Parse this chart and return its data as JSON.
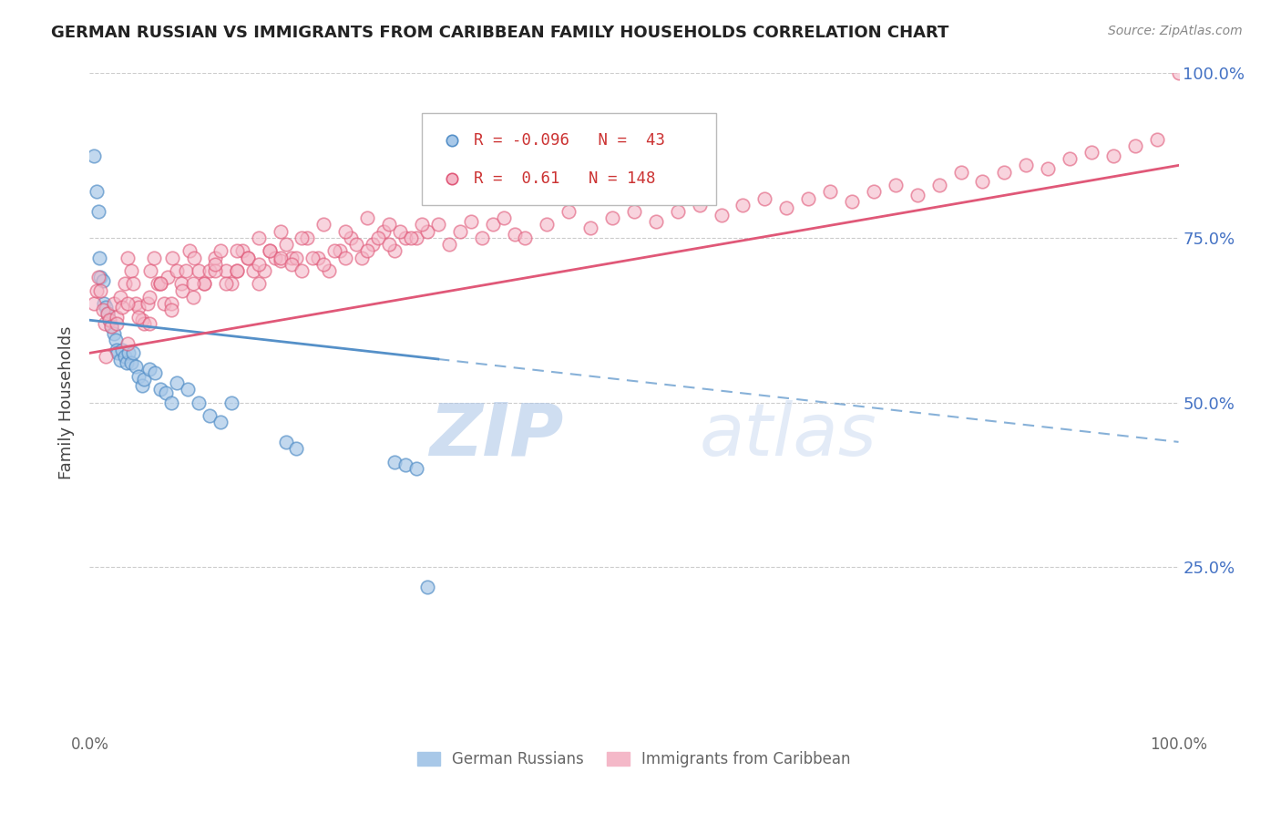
{
  "title": "GERMAN RUSSIAN VS IMMIGRANTS FROM CARIBBEAN FAMILY HOUSEHOLDS CORRELATION CHART",
  "source": "Source: ZipAtlas.com",
  "ylabel": "Family Households",
  "right_yticks": [
    "100.0%",
    "75.0%",
    "50.0%",
    "25.0%"
  ],
  "right_ytick_vals": [
    1.0,
    0.75,
    0.5,
    0.25
  ],
  "legend_blue_label": "German Russians",
  "legend_pink_label": "Immigrants from Caribbean",
  "R_blue": -0.096,
  "N_blue": 43,
  "R_pink": 0.61,
  "N_pink": 148,
  "blue_color": "#a8c8e8",
  "pink_color": "#f4b8c8",
  "blue_line_color": "#5590c8",
  "pink_line_color": "#e05878",
  "watermark_zip": "ZIP",
  "watermark_atlas": "atlas",
  "xlim": [
    0.0,
    1.0
  ],
  "ylim": [
    0.0,
    1.0
  ],
  "blue_scatter_x": [
    0.004,
    0.006,
    0.008,
    0.009,
    0.01,
    0.012,
    0.013,
    0.015,
    0.016,
    0.018,
    0.02,
    0.022,
    0.024,
    0.025,
    0.026,
    0.028,
    0.03,
    0.032,
    0.034,
    0.036,
    0.038,
    0.04,
    0.042,
    0.045,
    0.048,
    0.05,
    0.055,
    0.06,
    0.065,
    0.07,
    0.075,
    0.08,
    0.09,
    0.1,
    0.11,
    0.12,
    0.13,
    0.18,
    0.19,
    0.28,
    0.29,
    0.3,
    0.31
  ],
  "blue_scatter_y": [
    0.875,
    0.82,
    0.79,
    0.72,
    0.69,
    0.685,
    0.65,
    0.645,
    0.635,
    0.625,
    0.615,
    0.605,
    0.595,
    0.58,
    0.575,
    0.565,
    0.58,
    0.57,
    0.56,
    0.575,
    0.56,
    0.575,
    0.555,
    0.54,
    0.525,
    0.535,
    0.55,
    0.545,
    0.52,
    0.515,
    0.5,
    0.53,
    0.52,
    0.5,
    0.48,
    0.47,
    0.5,
    0.44,
    0.43,
    0.41,
    0.405,
    0.4,
    0.22
  ],
  "pink_scatter_x": [
    0.004,
    0.006,
    0.008,
    0.01,
    0.012,
    0.014,
    0.016,
    0.018,
    0.02,
    0.022,
    0.025,
    0.028,
    0.03,
    0.032,
    0.035,
    0.038,
    0.04,
    0.042,
    0.045,
    0.048,
    0.05,
    0.053,
    0.056,
    0.059,
    0.062,
    0.065,
    0.068,
    0.072,
    0.076,
    0.08,
    0.084,
    0.088,
    0.092,
    0.096,
    0.1,
    0.105,
    0.11,
    0.115,
    0.12,
    0.125,
    0.13,
    0.135,
    0.14,
    0.145,
    0.15,
    0.155,
    0.16,
    0.165,
    0.17,
    0.175,
    0.18,
    0.185,
    0.19,
    0.2,
    0.21,
    0.22,
    0.23,
    0.24,
    0.25,
    0.26,
    0.27,
    0.28,
    0.29,
    0.3,
    0.31,
    0.32,
    0.33,
    0.34,
    0.35,
    0.36,
    0.37,
    0.38,
    0.39,
    0.4,
    0.42,
    0.44,
    0.46,
    0.48,
    0.5,
    0.52,
    0.54,
    0.56,
    0.58,
    0.6,
    0.62,
    0.64,
    0.66,
    0.68,
    0.7,
    0.72,
    0.74,
    0.76,
    0.78,
    0.8,
    0.82,
    0.84,
    0.86,
    0.88,
    0.9,
    0.92,
    0.94,
    0.96,
    0.98,
    1.0,
    0.015,
    0.025,
    0.035,
    0.045,
    0.055,
    0.065,
    0.075,
    0.085,
    0.095,
    0.105,
    0.115,
    0.125,
    0.135,
    0.145,
    0.155,
    0.165,
    0.175,
    0.185,
    0.195,
    0.205,
    0.215,
    0.225,
    0.235,
    0.245,
    0.255,
    0.265,
    0.275,
    0.285,
    0.295,
    0.305,
    0.035,
    0.055,
    0.075,
    0.095,
    0.115,
    0.135,
    0.155,
    0.175,
    0.195,
    0.215,
    0.235,
    0.255,
    0.275
  ],
  "pink_scatter_y": [
    0.65,
    0.67,
    0.69,
    0.67,
    0.64,
    0.62,
    0.635,
    0.625,
    0.615,
    0.65,
    0.63,
    0.66,
    0.645,
    0.68,
    0.72,
    0.7,
    0.68,
    0.65,
    0.645,
    0.625,
    0.62,
    0.65,
    0.7,
    0.72,
    0.68,
    0.68,
    0.65,
    0.69,
    0.72,
    0.7,
    0.68,
    0.7,
    0.73,
    0.72,
    0.7,
    0.68,
    0.7,
    0.72,
    0.73,
    0.7,
    0.68,
    0.7,
    0.73,
    0.72,
    0.7,
    0.68,
    0.7,
    0.73,
    0.72,
    0.715,
    0.74,
    0.72,
    0.72,
    0.75,
    0.72,
    0.7,
    0.73,
    0.75,
    0.72,
    0.74,
    0.76,
    0.73,
    0.75,
    0.75,
    0.76,
    0.77,
    0.74,
    0.76,
    0.775,
    0.75,
    0.77,
    0.78,
    0.755,
    0.75,
    0.77,
    0.79,
    0.765,
    0.78,
    0.79,
    0.775,
    0.79,
    0.8,
    0.785,
    0.8,
    0.81,
    0.795,
    0.81,
    0.82,
    0.805,
    0.82,
    0.83,
    0.815,
    0.83,
    0.85,
    0.835,
    0.85,
    0.86,
    0.855,
    0.87,
    0.88,
    0.875,
    0.89,
    0.9,
    1.0,
    0.57,
    0.62,
    0.65,
    0.63,
    0.66,
    0.68,
    0.65,
    0.67,
    0.66,
    0.68,
    0.7,
    0.68,
    0.7,
    0.72,
    0.71,
    0.73,
    0.72,
    0.71,
    0.7,
    0.72,
    0.71,
    0.73,
    0.72,
    0.74,
    0.73,
    0.75,
    0.74,
    0.76,
    0.75,
    0.77,
    0.59,
    0.62,
    0.64,
    0.68,
    0.71,
    0.73,
    0.75,
    0.76,
    0.75,
    0.77,
    0.76,
    0.78,
    0.77
  ]
}
